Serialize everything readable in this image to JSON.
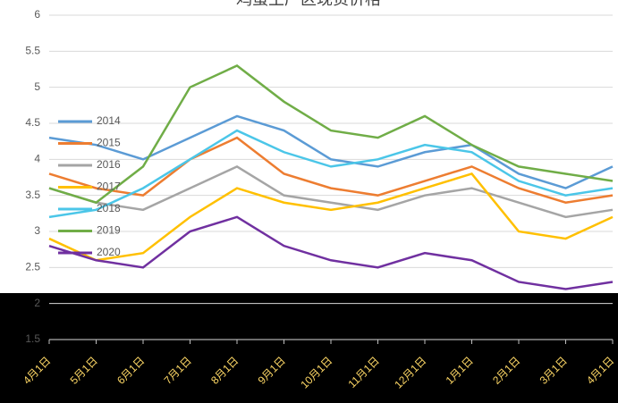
{
  "chart_data": {
    "type": "line",
    "title": "鸡蛋主产区现货价格",
    "categories": [
      "4月1日",
      "5月1日",
      "6月1日",
      "7月1日",
      "8月1日",
      "9月1日",
      "10月1日",
      "11月1日",
      "12月1日",
      "1月1日",
      "2月1日",
      "3月1日",
      "4月1日"
    ],
    "series": [
      {
        "name": "2014",
        "color": "#5b9bd5",
        "values": [
          4.3,
          4.2,
          4.0,
          4.3,
          4.6,
          4.4,
          4.0,
          3.9,
          4.1,
          4.2,
          3.8,
          3.6,
          3.9
        ]
      },
      {
        "name": "2015",
        "color": "#ed7d31",
        "values": [
          3.8,
          3.6,
          3.5,
          4.0,
          4.3,
          3.8,
          3.6,
          3.5,
          3.7,
          3.9,
          3.6,
          3.4,
          3.5
        ]
      },
      {
        "name": "2016",
        "color": "#a5a5a5",
        "values": [
          3.6,
          3.4,
          3.3,
          3.6,
          3.9,
          3.5,
          3.4,
          3.3,
          3.5,
          3.6,
          3.4,
          3.2,
          3.3
        ]
      },
      {
        "name": "2017",
        "color": "#ffc000",
        "values": [
          2.9,
          2.6,
          2.7,
          3.2,
          3.6,
          3.4,
          3.3,
          3.4,
          3.6,
          3.8,
          3.0,
          2.9,
          3.2
        ]
      },
      {
        "name": "2018",
        "color": "#4bc6e8",
        "values": [
          3.2,
          3.3,
          3.6,
          4.0,
          4.4,
          4.1,
          3.9,
          4.0,
          4.2,
          4.1,
          3.7,
          3.5,
          3.6
        ]
      },
      {
        "name": "2019",
        "color": "#70ad47",
        "values": [
          3.6,
          3.4,
          3.9,
          5.0,
          5.3,
          4.8,
          4.4,
          4.3,
          4.6,
          4.2,
          3.9,
          3.8,
          3.7
        ]
      },
      {
        "name": "2020",
        "color": "#7030a0",
        "values": [
          2.8,
          2.6,
          2.5,
          3.0,
          3.2,
          2.8,
          2.6,
          2.5,
          2.7,
          2.6,
          2.3,
          2.2,
          2.3
        ]
      }
    ],
    "ylim": [
      1.5,
      6
    ],
    "yticks": [
      1.5,
      2,
      2.5,
      3,
      3.5,
      4,
      4.5,
      5,
      5.5,
      6
    ],
    "grid": true
  }
}
